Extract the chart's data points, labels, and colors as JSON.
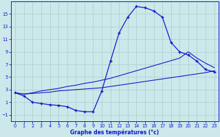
{
  "title": "Graphe des températures (°c)",
  "bg_color": "#cce8ea",
  "grid_color": "#aacccc",
  "line_color": "#1515cc",
  "xlim": [
    -0.5,
    23.5
  ],
  "ylim": [
    -2.0,
    17.0
  ],
  "xticks": [
    0,
    1,
    2,
    3,
    4,
    5,
    6,
    7,
    8,
    9,
    10,
    11,
    12,
    13,
    14,
    15,
    16,
    17,
    18,
    19,
    20,
    21,
    22,
    23
  ],
  "yticks": [
    -1,
    1,
    3,
    5,
    7,
    9,
    11,
    13,
    15
  ],
  "curve_main_x": [
    0,
    1,
    2,
    3,
    4,
    5,
    6,
    7,
    8,
    9,
    10,
    11,
    12,
    13,
    14,
    15,
    16,
    17,
    18,
    19,
    20,
    21,
    22,
    23
  ],
  "curve_main_y": [
    2.5,
    2.0,
    1.0,
    0.8,
    0.6,
    0.5,
    0.3,
    -0.3,
    -0.5,
    -0.5,
    2.8,
    7.5,
    12.0,
    14.5,
    16.2,
    16.0,
    15.5,
    14.5,
    10.5,
    9.0,
    8.5,
    7.5,
    6.2,
    5.8
  ],
  "curve_low_x": [
    0,
    1,
    2,
    3,
    4,
    5,
    6,
    7,
    8,
    9,
    10,
    11,
    12,
    13,
    14,
    15,
    16,
    17,
    18,
    19,
    20,
    21,
    22,
    23
  ],
  "curve_low_y": [
    2.5,
    2.3,
    2.4,
    2.5,
    2.6,
    2.8,
    2.9,
    3.0,
    3.1,
    3.2,
    3.3,
    3.5,
    3.7,
    3.9,
    4.1,
    4.3,
    4.5,
    4.7,
    4.9,
    5.1,
    5.3,
    5.5,
    5.7,
    6.0
  ],
  "curve_mid_x": [
    0,
    1,
    2,
    3,
    4,
    5,
    6,
    7,
    8,
    9,
    10,
    11,
    12,
    13,
    14,
    15,
    16,
    17,
    18,
    19,
    20,
    21,
    22,
    23
  ],
  "curve_mid_y": [
    2.5,
    2.3,
    2.5,
    2.8,
    3.0,
    3.2,
    3.5,
    3.7,
    4.0,
    4.2,
    4.5,
    4.8,
    5.2,
    5.6,
    6.0,
    6.4,
    6.8,
    7.2,
    7.6,
    8.0,
    9.0,
    8.0,
    7.2,
    6.5
  ]
}
